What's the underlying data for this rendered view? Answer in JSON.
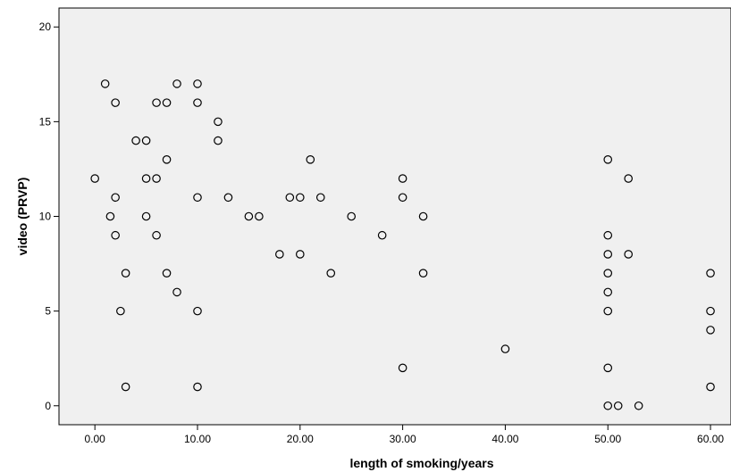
{
  "chart_data": {
    "type": "scatter",
    "title": "",
    "xlabel": "length of smoking/years",
    "ylabel": "video (PRVP)",
    "xlim": [
      -3.5,
      62
    ],
    "ylim": [
      -1,
      21
    ],
    "xticks": [
      0,
      10,
      20,
      30,
      40,
      50,
      60
    ],
    "xtick_labels": [
      "0.00",
      "10.00",
      "20.00",
      "30.00",
      "40.00",
      "50.00",
      "60.00"
    ],
    "yticks": [
      0,
      5,
      10,
      15,
      20
    ],
    "ytick_labels": [
      "0",
      "5",
      "10",
      "15",
      "20"
    ],
    "grid": false,
    "legend": "none",
    "plot_background": "#f0f0f0",
    "marker_color": "#000000",
    "points": [
      [
        0,
        12
      ],
      [
        1,
        17
      ],
      [
        1.5,
        10
      ],
      [
        2,
        16
      ],
      [
        2,
        11
      ],
      [
        2,
        9
      ],
      [
        2.5,
        5
      ],
      [
        3,
        7
      ],
      [
        3,
        1
      ],
      [
        4,
        14
      ],
      [
        5,
        14
      ],
      [
        5,
        12
      ],
      [
        5,
        10
      ],
      [
        6,
        16
      ],
      [
        6,
        12
      ],
      [
        6,
        9
      ],
      [
        7,
        16
      ],
      [
        7,
        13
      ],
      [
        7,
        7
      ],
      [
        8,
        17
      ],
      [
        8,
        6
      ],
      [
        10,
        17
      ],
      [
        10,
        16
      ],
      [
        10,
        11
      ],
      [
        10,
        5
      ],
      [
        10,
        1
      ],
      [
        12,
        15
      ],
      [
        12,
        14
      ],
      [
        13,
        11
      ],
      [
        15,
        10
      ],
      [
        16,
        10
      ],
      [
        18,
        8
      ],
      [
        19,
        11
      ],
      [
        20,
        11
      ],
      [
        20,
        8
      ],
      [
        21,
        13
      ],
      [
        22,
        11
      ],
      [
        23,
        7
      ],
      [
        25,
        10
      ],
      [
        28,
        9
      ],
      [
        30,
        12
      ],
      [
        30,
        11
      ],
      [
        30,
        2
      ],
      [
        32,
        10
      ],
      [
        32,
        7
      ],
      [
        40,
        3
      ],
      [
        50,
        13
      ],
      [
        50,
        9
      ],
      [
        50,
        8
      ],
      [
        50,
        7
      ],
      [
        50,
        6
      ],
      [
        50,
        5
      ],
      [
        50,
        2
      ],
      [
        50,
        0
      ],
      [
        51,
        0
      ],
      [
        52,
        12
      ],
      [
        52,
        8
      ],
      [
        53,
        0
      ],
      [
        60,
        7
      ],
      [
        60,
        5
      ],
      [
        60,
        4
      ],
      [
        60,
        1
      ]
    ]
  }
}
